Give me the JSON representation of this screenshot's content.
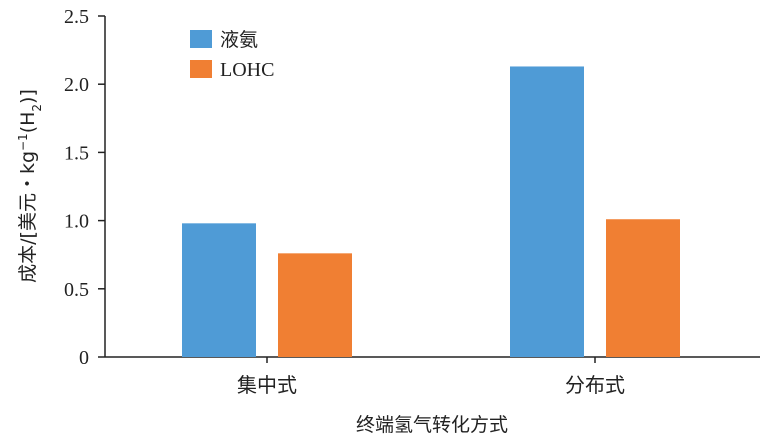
{
  "chart_data": {
    "type": "bar",
    "title": "",
    "xlabel": "终端氢气转化方式",
    "ylabel_parts": {
      "main": "成本/[美元・kg",
      "sup": "−1",
      "mid": "(H",
      "sub": "2",
      "end": ")]"
    },
    "categories": [
      "集中式",
      "分布式"
    ],
    "series": [
      {
        "name": "液氨",
        "values": [
          0.98,
          2.13
        ],
        "color": "#4f9bd6"
      },
      {
        "name": "LOHC",
        "values": [
          0.76,
          1.01
        ],
        "color": "#f07f33"
      }
    ],
    "ylim": [
      0,
      2.5
    ],
    "yticks": [
      0,
      0.5,
      1.0,
      1.5,
      2.0,
      2.5
    ],
    "ytick_labels": [
      "0",
      "0.5",
      "1.0",
      "1.5",
      "2.0",
      "2.5"
    ],
    "grid": false,
    "legend_position": "top-left"
  }
}
